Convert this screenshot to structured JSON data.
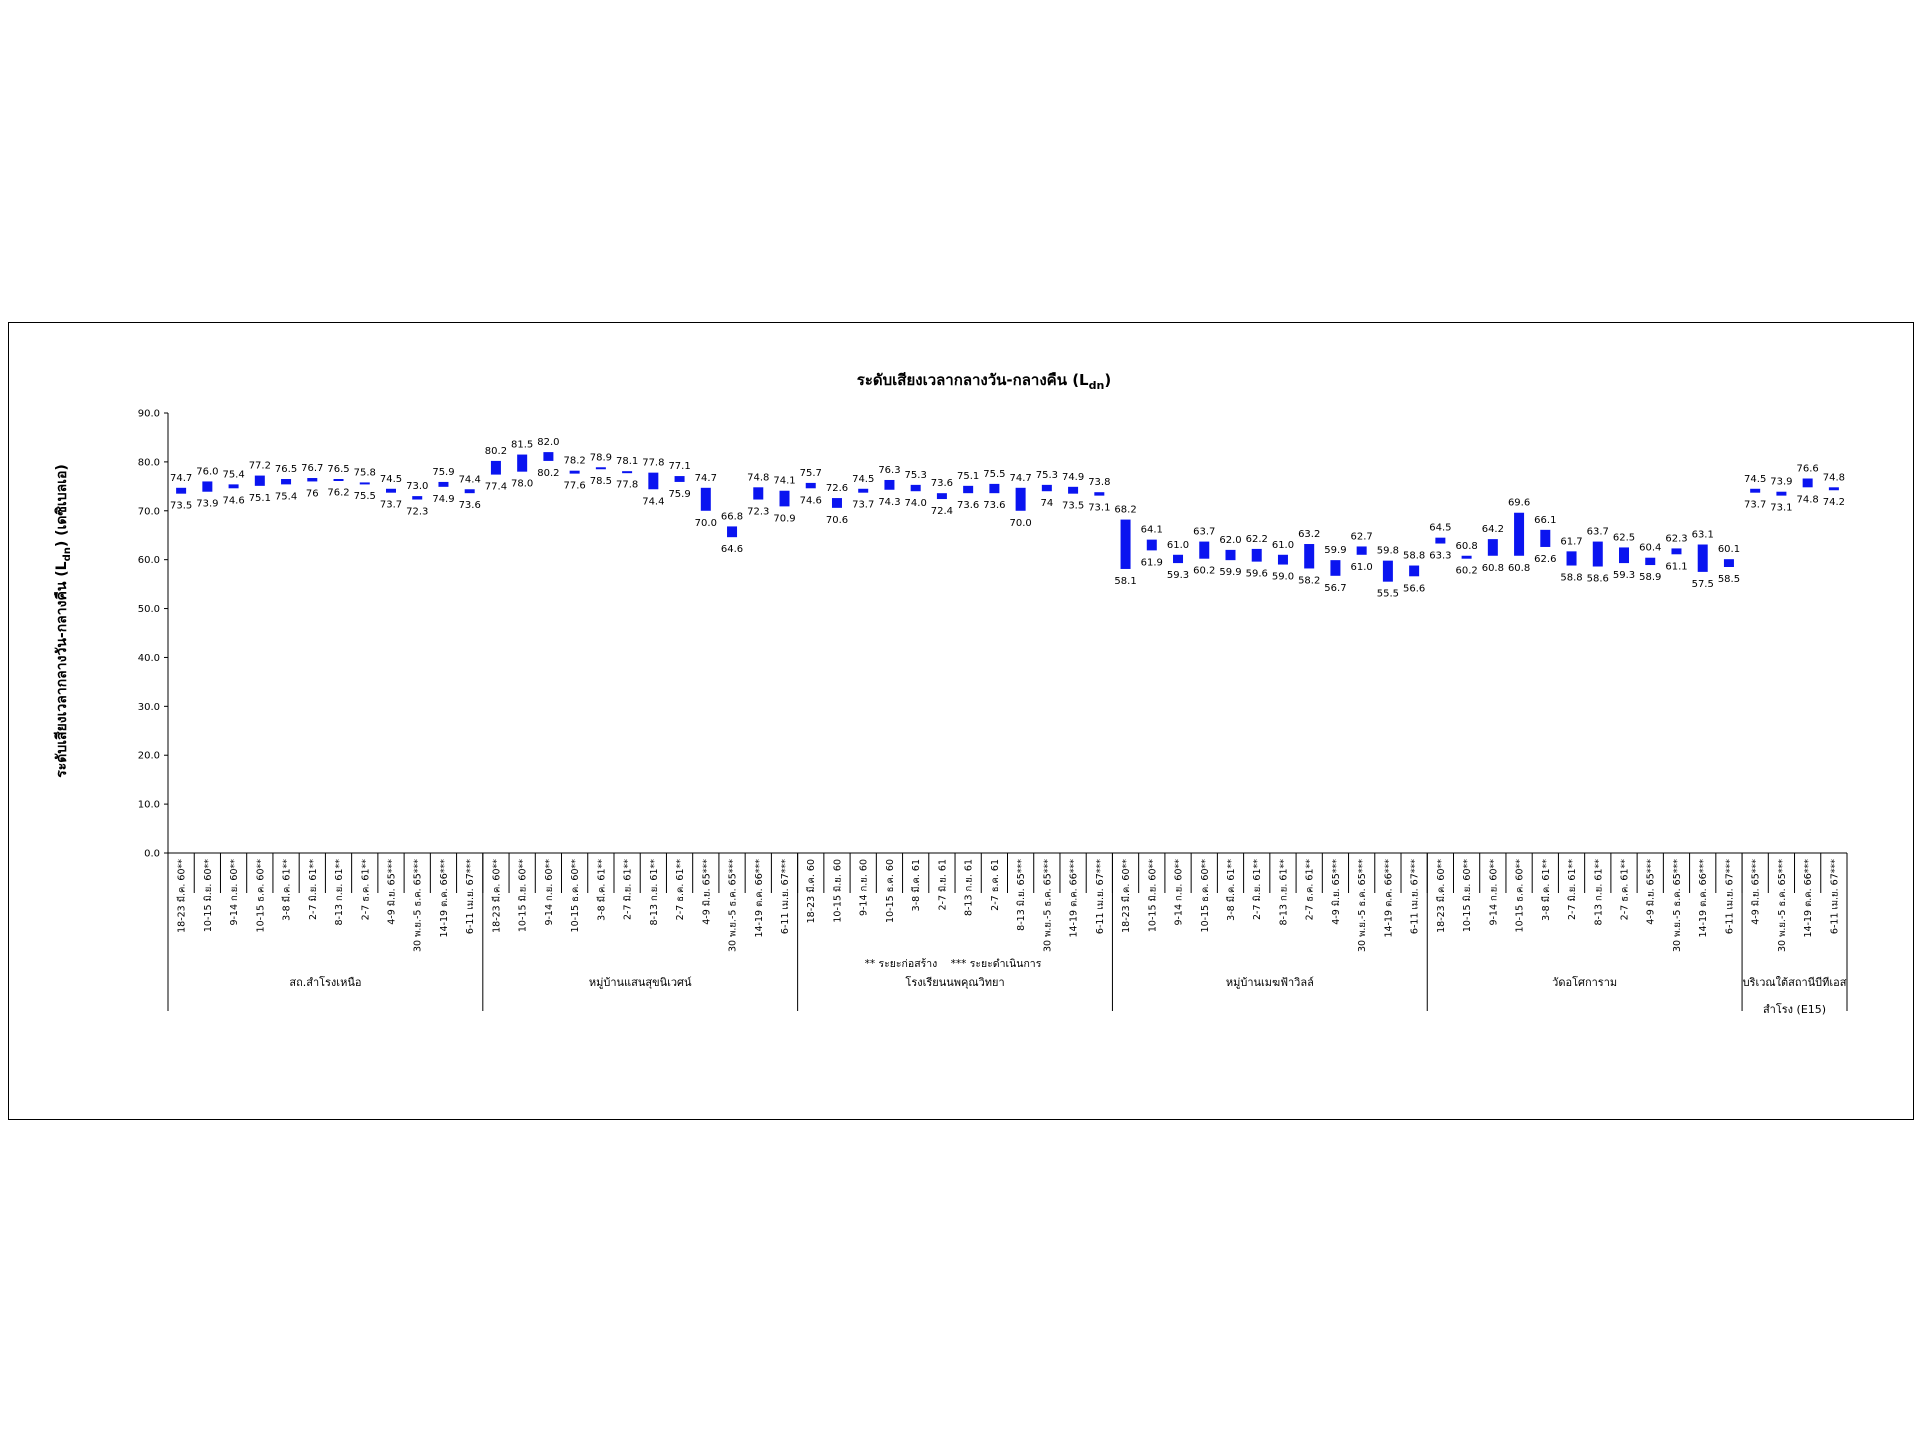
{
  "chart_data": {
    "type": "bar",
    "subtype": "floating-range",
    "title": "ระดับเสียงเวลากลางวัน-กลางคืน (L",
    "title_sub": "dn",
    "title_end": ")",
    "ylabel": "ระดับเสียงเวลากลางวัน-กลางคืน (L",
    "ylabel_sub": "dn",
    "ylabel_end": ") (เดซิเบลเอ)",
    "ylim": [
      0,
      90
    ],
    "yticks": [
      "0.0",
      "10.0",
      "20.0",
      "30.0",
      "40.0",
      "50.0",
      "60.0",
      "70.0",
      "80.0",
      "90.0"
    ],
    "bar_color": "#0a14f0",
    "legend": "** ระยะก่อสร้าง    *** ระยะดำเนินการ",
    "groups": [
      {
        "name": "สถ.สำโรงเหนือ",
        "name2": "",
        "points": [
          {
            "label": "18-23 มี.ค. 60**",
            "high": "74.7",
            "low": "73.5"
          },
          {
            "label": "10-15 มิ.ย. 60**",
            "high": "76.0",
            "low": "73.9"
          },
          {
            "label": "9-14 ก.ย. 60**",
            "high": "75.4",
            "low": "74.6"
          },
          {
            "label": "10-15 ธ.ค. 60**",
            "high": "77.2",
            "low": "75.1"
          },
          {
            "label": "3-8 มี.ค. 61**",
            "high": "76.5",
            "low": "75.4"
          },
          {
            "label": "2-7 มิ.ย. 61**",
            "high": "76.7",
            "low": "76"
          },
          {
            "label": "8-13 ก.ย. 61**",
            "high": "76.5",
            "low": "76.2"
          },
          {
            "label": "2-7 ธ.ค. 61**",
            "high": "75.8",
            "low": "75.5"
          },
          {
            "label": "4-9 มิ.ย. 65***",
            "high": "74.5",
            "low": "73.7"
          },
          {
            "label": "30 พ.ย.-5 ธ.ค. 65***",
            "high": "73.0",
            "low": "72.3"
          },
          {
            "label": "14-19 ต.ค. 66***",
            "high": "75.9",
            "low": "74.9"
          },
          {
            "label": "6-11 เม.ย. 67***",
            "high": "74.4",
            "low": "73.6"
          }
        ]
      },
      {
        "name": "หมู่บ้านแสนสุขนิเวศน์",
        "name2": "",
        "points": [
          {
            "label": "18-23 มี.ค. 60**",
            "high": "80.2",
            "low": "77.4"
          },
          {
            "label": "10-15 มิ.ย. 60**",
            "high": "81.5",
            "low": "78.0"
          },
          {
            "label": "9-14 ก.ย. 60**",
            "high": "82.0",
            "low": "80.2"
          },
          {
            "label": "10-15 ธ.ค. 60**",
            "high": "78.2",
            "low": "77.6"
          },
          {
            "label": "3-8 มี.ค. 61**",
            "high": "78.9",
            "low": "78.5"
          },
          {
            "label": "2-7 มิ.ย. 61**",
            "high": "78.1",
            "low": "77.8"
          },
          {
            "label": "8-13 ก.ย. 61**",
            "high": "77.8",
            "low": "74.4"
          },
          {
            "label": "2-7 ธ.ค. 61**",
            "high": "77.1",
            "low": "75.9"
          },
          {
            "label": "4-9 มิ.ย. 65***",
            "high": "74.7",
            "low": "70.0"
          },
          {
            "label": "30 พ.ย.-5 ธ.ค. 65***",
            "high": "66.8",
            "low": "64.6"
          },
          {
            "label": "14-19 ต.ค. 66***",
            "high": "74.8",
            "low": "72.3"
          },
          {
            "label": "6-11 เม.ย. 67***",
            "high": "74.1",
            "low": "70.9"
          }
        ]
      },
      {
        "name": "โรงเรียนนพคุณวิทยา",
        "name2": "",
        "points": [
          {
            "label": "18-23 มี.ค. 60",
            "high": "75.7",
            "low": "74.6"
          },
          {
            "label": "10-15 มิ.ย. 60",
            "high": "72.6",
            "low": "70.6"
          },
          {
            "label": "9-14 ก.ย. 60",
            "high": "74.5",
            "low": "73.7"
          },
          {
            "label": "10-15 ธ.ค. 60",
            "high": "76.3",
            "low": "74.3"
          },
          {
            "label": "3-8 มี.ค. 61",
            "high": "75.3",
            "low": "74.0"
          },
          {
            "label": "2-7 มิ.ย. 61",
            "high": "73.6",
            "low": "72.4"
          },
          {
            "label": "8-13 ก.ย. 61",
            "high": "75.1",
            "low": "73.6"
          },
          {
            "label": "2-7 ธ.ค. 61",
            "high": "75.5",
            "low": "73.6"
          },
          {
            "label": "8-13 มิ.ย. 65***",
            "high": "74.7",
            "low": "70.0"
          },
          {
            "label": "30 พ.ย.-5 ธ.ค. 65***",
            "high": "75.3",
            "low": "74"
          },
          {
            "label": "14-19 ต.ค. 66***",
            "high": "74.9",
            "low": "73.5"
          },
          {
            "label": "6-11 เม.ย. 67***",
            "high": "73.8",
            "low": "73.1"
          }
        ]
      },
      {
        "name": "หมู่บ้านเมฆฟ้าวิลล์",
        "name2": "",
        "points": [
          {
            "label": "18-23 มี.ค. 60**",
            "high": "68.2",
            "low": "58.1"
          },
          {
            "label": "10-15 มิ.ย. 60**",
            "high": "64.1",
            "low": "61.9"
          },
          {
            "label": "9-14 ก.ย. 60**",
            "high": "61.0",
            "low": "59.3"
          },
          {
            "label": "10-15 ธ.ค. 60**",
            "high": "63.7",
            "low": "60.2"
          },
          {
            "label": "3-8 มี.ค. 61**",
            "high": "62.0",
            "low": "59.9"
          },
          {
            "label": "2-7 มิ.ย. 61**",
            "high": "62.2",
            "low": "59.6"
          },
          {
            "label": "8-13 ก.ย. 61**",
            "high": "61.0",
            "low": "59.0"
          },
          {
            "label": "2-7 ธ.ค. 61**",
            "high": "63.2",
            "low": "58.2"
          },
          {
            "label": "4-9 มิ.ย. 65***",
            "high": "59.9",
            "low": "56.7"
          },
          {
            "label": "30 พ.ย.-5 ธ.ค. 65***",
            "high": "62.7",
            "low": "61.0"
          },
          {
            "label": "14-19 ต.ค. 66***",
            "high": "59.8",
            "low": "55.5"
          },
          {
            "label": "6-11 เม.ย. 67***",
            "high": "58.8",
            "low": "56.6"
          }
        ]
      },
      {
        "name": "วัดอโศการาม",
        "name2": "",
        "points": [
          {
            "label": "18-23 มี.ค. 60**",
            "high": "64.5",
            "low": "63.3"
          },
          {
            "label": "10-15 มิ.ย. 60**",
            "high": "60.8",
            "low": "60.2"
          },
          {
            "label": "9-14 ก.ย. 60**",
            "high": "64.2",
            "low": "60.8"
          },
          {
            "label": "10-15 ธ.ค. 60**",
            "high": "69.6",
            "low": "60.8"
          },
          {
            "label": "3-8 มี.ค. 61**",
            "high": "66.1",
            "low": "62.6"
          },
          {
            "label": "2-7 มิ.ย. 61**",
            "high": "61.7",
            "low": "58.8"
          },
          {
            "label": "8-13 ก.ย. 61**",
            "high": "63.7",
            "low": "58.6"
          },
          {
            "label": "2-7 ธ.ค. 61**",
            "high": "62.5",
            "low": "59.3"
          },
          {
            "label": "4-9 มิ.ย. 65***",
            "high": "60.4",
            "low": "58.9"
          },
          {
            "label": "30 พ.ย.-5 ธ.ค. 65***",
            "high": "62.3",
            "low": "61.1"
          },
          {
            "label": "14-19 ต.ค. 66***",
            "high": "63.1",
            "low": "57.5"
          },
          {
            "label": "6-11 เม.ย. 67***",
            "high": "60.1",
            "low": "58.5"
          }
        ]
      },
      {
        "name": "บริเวณใต้สถานีบีทีเอส",
        "name2": "สำโรง (E15)",
        "points": [
          {
            "label": "4-9 มิ.ย. 65***",
            "high": "74.5",
            "low": "73.7"
          },
          {
            "label": "30 พ.ย.-5 ธ.ค. 65***",
            "high": "73.9",
            "low": "73.1"
          },
          {
            "label": "14-19 ต.ค. 66***",
            "high": "76.6",
            "low": "74.8"
          },
          {
            "label": "6-11 เม.ย. 67***",
            "high": "74.8",
            "low": "74.2"
          }
        ]
      }
    ]
  }
}
